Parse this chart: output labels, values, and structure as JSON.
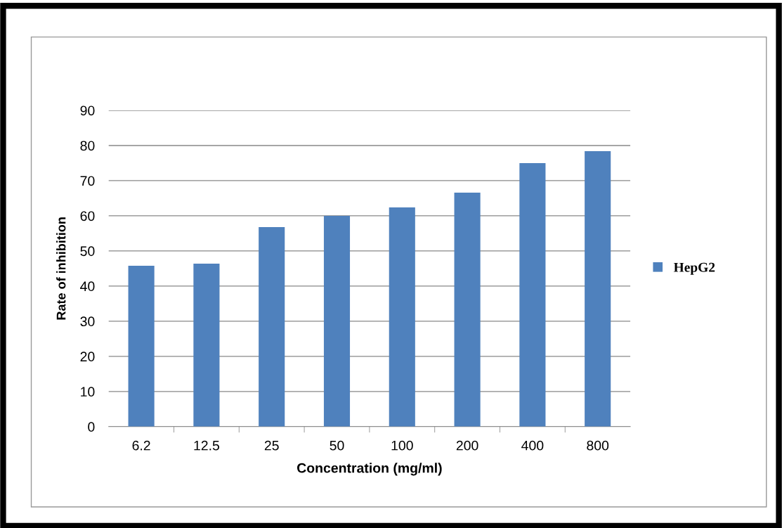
{
  "chart_data": {
    "type": "bar",
    "xlabel": "Concentration (mg/ml)",
    "ylabel": "Rate of inhibition",
    "categories": [
      "6.2",
      "12.5",
      "25",
      "50",
      "100",
      "200",
      "400",
      "800"
    ],
    "series": [
      {
        "name": "HepG2",
        "color": "#4f81bd",
        "values": [
          45.8,
          46.4,
          56.8,
          60,
          62.4,
          66.6,
          75,
          78.4
        ]
      }
    ],
    "ylim": [
      0,
      90
    ],
    "yticks": [
      0,
      10,
      20,
      30,
      40,
      50,
      60,
      70,
      80,
      90
    ],
    "grid": "y",
    "legend": "right"
  }
}
